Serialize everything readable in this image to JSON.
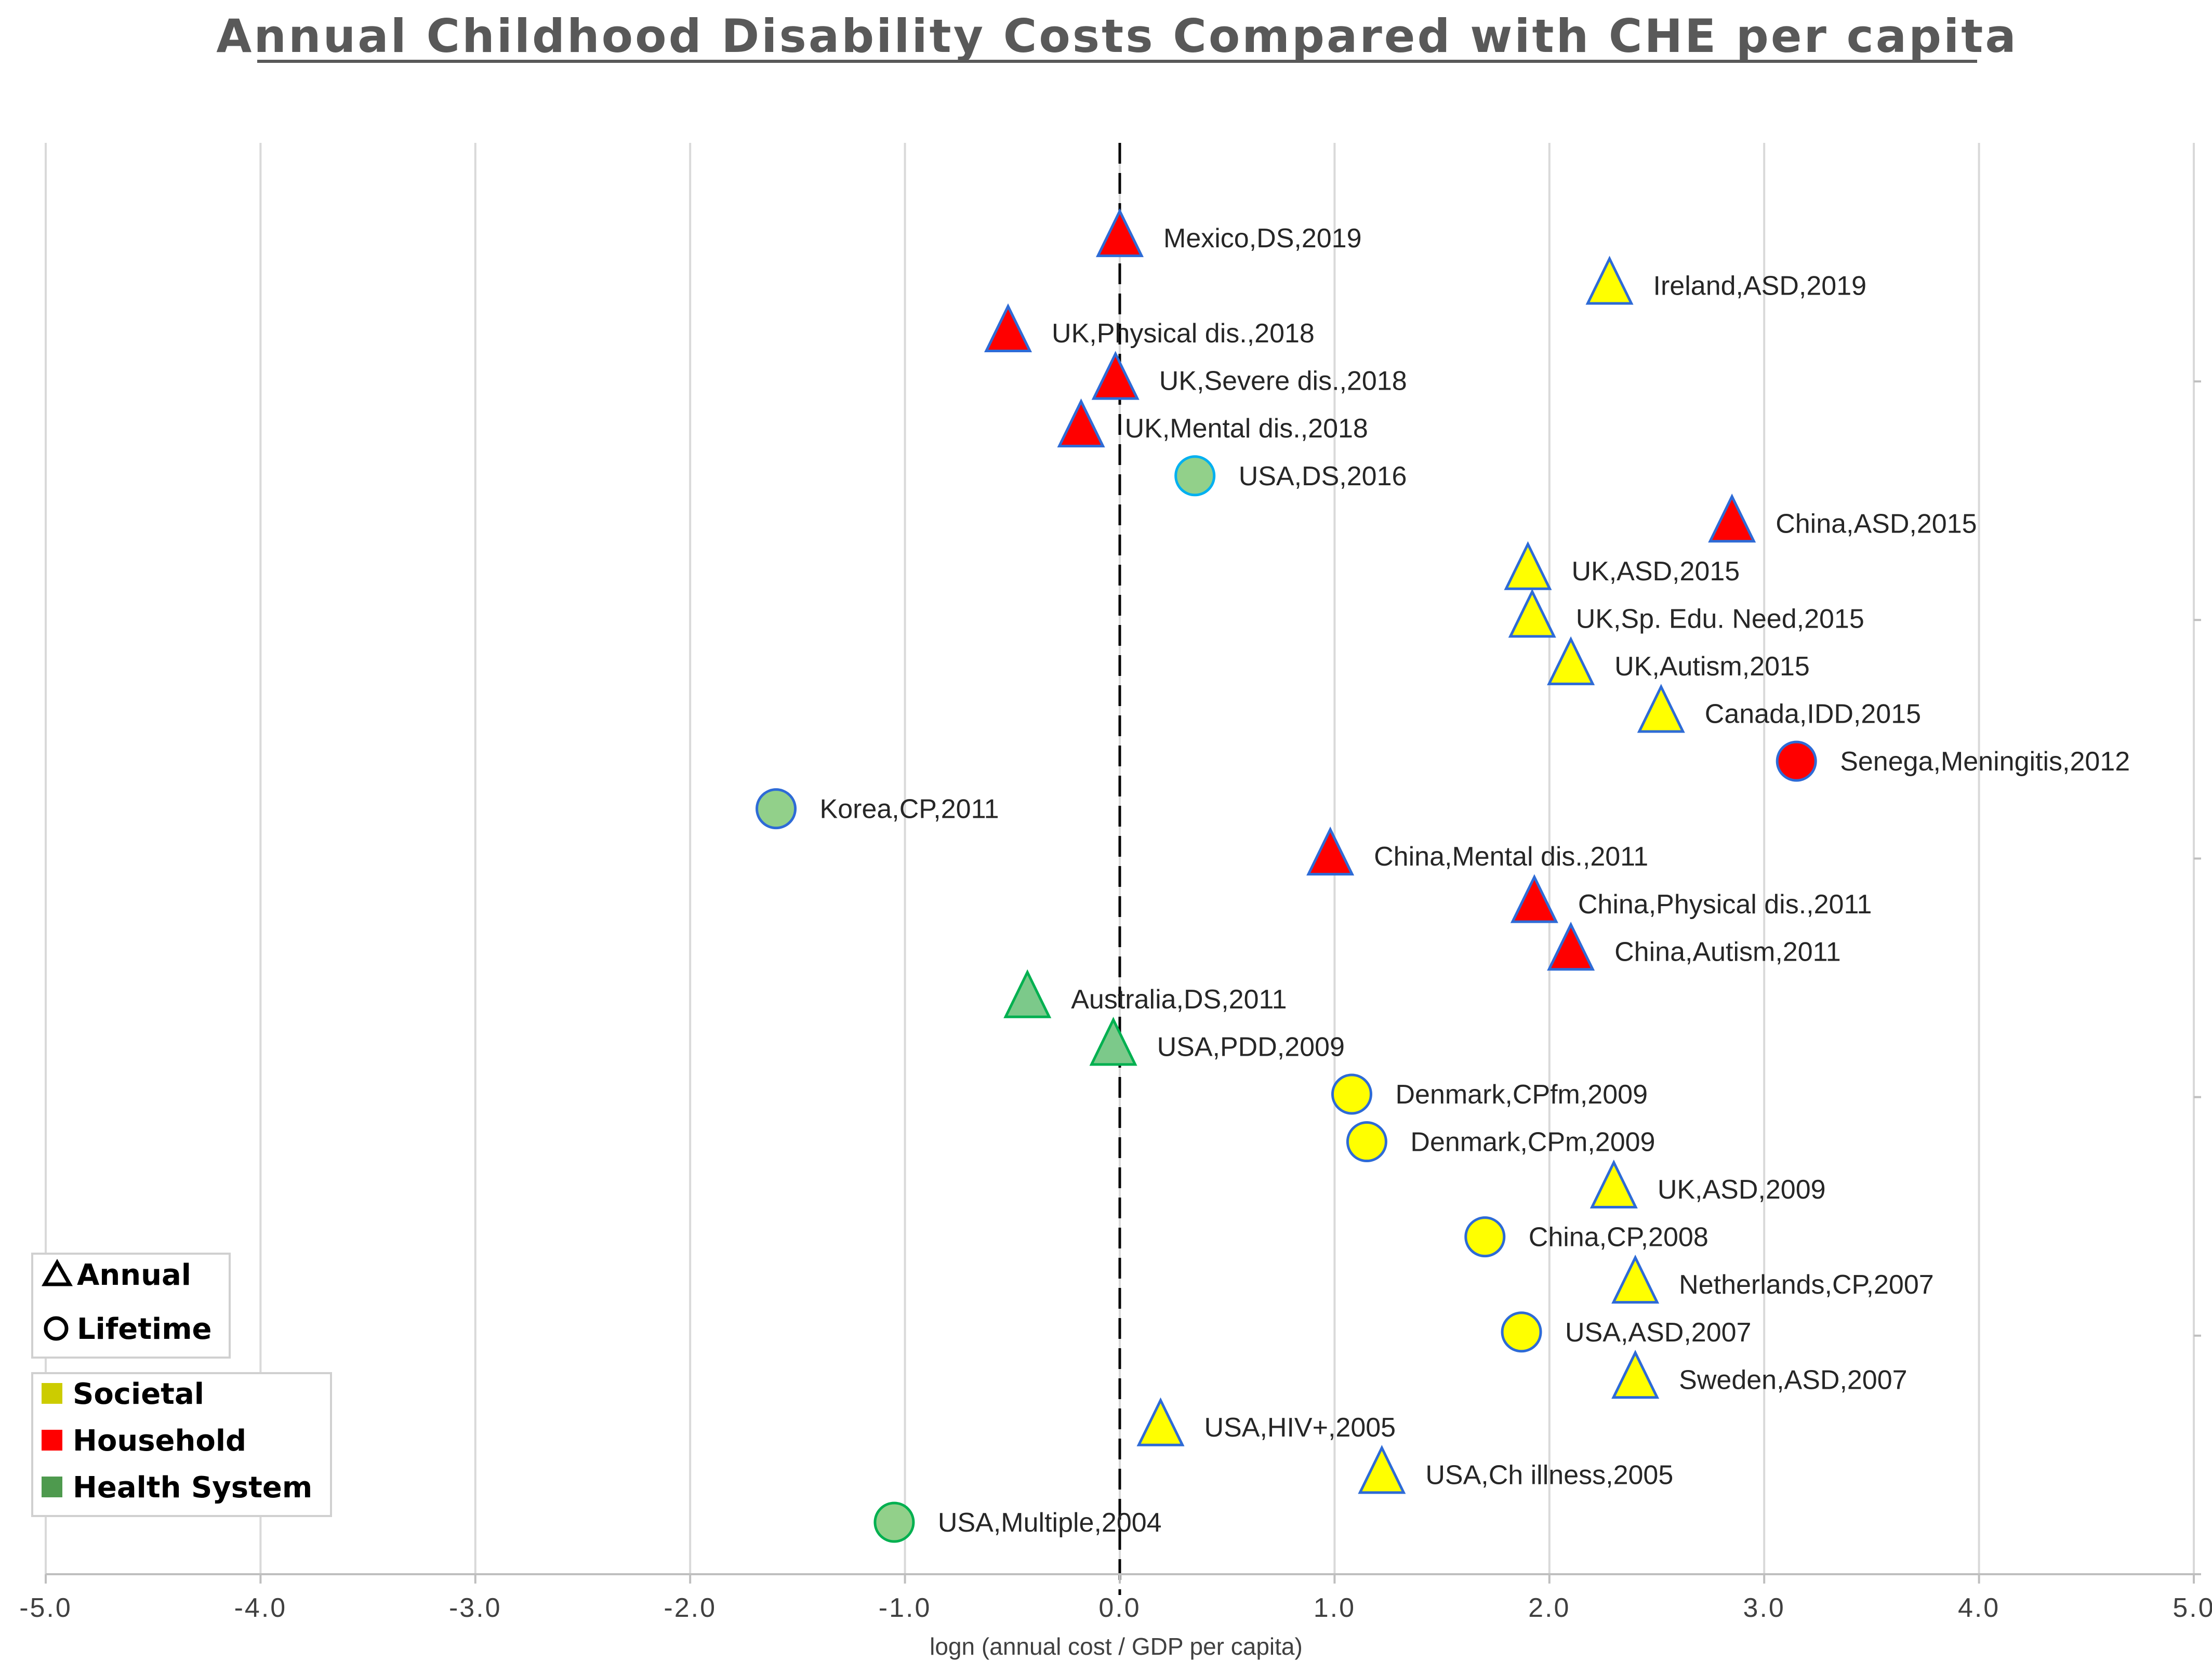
{
  "chart_data": {
    "type": "scatter",
    "title": "Annual Childhood Disability Costs Compared with CHE per capita",
    "xlabel": "logn (annual cost / GDP per capita)",
    "ylabel": "",
    "xlim": [
      -5.0,
      5.0
    ],
    "x_ticks": [
      "-5.0",
      "-4.0",
      "-3.0",
      "-2.0",
      "-1.0",
      "0.0",
      "1.0",
      "2.0",
      "3.0",
      "4.0",
      "5.0"
    ],
    "grid": "vertical",
    "reference_line": "dashed vertical line at x = 0",
    "legend": {
      "placement": "bottom-left",
      "shapes": [
        {
          "shape": "triangle",
          "label": "Annual"
        },
        {
          "shape": "circle",
          "label": "Lifetime"
        }
      ],
      "perspectives": [
        {
          "label": "Societal",
          "color": "#cccc00"
        },
        {
          "label": "Household",
          "color": "#ff0000"
        },
        {
          "label": "Health System",
          "color": "#4e9a4e"
        }
      ]
    },
    "colors": {
      "societal_fill": "#ffff00",
      "household_fill": "#ff0000",
      "health_fill": "#92d08a",
      "health_fill_triangle": "#7cc98a",
      "outline_blue": "#2e6bd6",
      "outline_green": "#00b050",
      "outline_cyan": "#00b0f0"
    },
    "points": [
      {
        "label": "Mexico,DS,2019",
        "x": 0.0,
        "shape": "triangle",
        "perspective": "Household"
      },
      {
        "label": "Ireland,ASD,2019",
        "x": 2.28,
        "shape": "triangle",
        "perspective": "Societal"
      },
      {
        "label": "UK,Physical dis.,2018",
        "x": -0.52,
        "shape": "triangle",
        "perspective": "Household"
      },
      {
        "label": "UK,Severe dis.,2018",
        "x": -0.02,
        "shape": "triangle",
        "perspective": "Household"
      },
      {
        "label": "UK,Mental dis.,2018",
        "x": -0.18,
        "shape": "triangle",
        "perspective": "Household"
      },
      {
        "label": "USA,DS,2016",
        "x": 0.35,
        "shape": "circle",
        "perspective": "Health System"
      },
      {
        "label": "China,ASD,2015",
        "x": 2.85,
        "shape": "triangle",
        "perspective": "Household"
      },
      {
        "label": "UK,ASD,2015",
        "x": 1.9,
        "shape": "triangle",
        "perspective": "Societal"
      },
      {
        "label": "UK,Sp. Edu. Need,2015",
        "x": 1.92,
        "shape": "triangle",
        "perspective": "Societal"
      },
      {
        "label": "UK,Autism,2015",
        "x": 2.1,
        "shape": "triangle",
        "perspective": "Societal"
      },
      {
        "label": "Canada,IDD,2015",
        "x": 2.52,
        "shape": "triangle",
        "perspective": "Societal"
      },
      {
        "label": "Senega,Meningitis,2012",
        "x": 3.15,
        "shape": "circle",
        "perspective": "Household"
      },
      {
        "label": "Korea,CP,2011",
        "x": -1.6,
        "shape": "circle",
        "perspective": "Health System"
      },
      {
        "label": "China,Mental dis.,2011",
        "x": 0.98,
        "shape": "triangle",
        "perspective": "Household"
      },
      {
        "label": "China,Physical dis.,2011",
        "x": 1.93,
        "shape": "triangle",
        "perspective": "Household"
      },
      {
        "label": "China,Autism,2011",
        "x": 2.1,
        "shape": "triangle",
        "perspective": "Household"
      },
      {
        "label": "Australia,DS,2011",
        "x": -0.43,
        "shape": "triangle",
        "perspective": "Health System"
      },
      {
        "label": "USA,PDD,2009",
        "x": -0.03,
        "shape": "triangle",
        "perspective": "Health System"
      },
      {
        "label": "Denmark,CPfm,2009",
        "x": 1.08,
        "shape": "circle",
        "perspective": "Societal"
      },
      {
        "label": "Denmark,CPm,2009",
        "x": 1.15,
        "shape": "circle",
        "perspective": "Societal"
      },
      {
        "label": "UK,ASD,2009",
        "x": 2.3,
        "shape": "triangle",
        "perspective": "Societal"
      },
      {
        "label": "China,CP,2008",
        "x": 1.7,
        "shape": "circle",
        "perspective": "Societal"
      },
      {
        "label": "Netherlands,CP,2007",
        "x": 2.4,
        "shape": "triangle",
        "perspective": "Societal"
      },
      {
        "label": "USA,ASD,2007",
        "x": 1.87,
        "shape": "circle",
        "perspective": "Societal"
      },
      {
        "label": "Sweden,ASD,2007",
        "x": 2.4,
        "shape": "triangle",
        "perspective": "Societal"
      },
      {
        "label": "USA,HIV+,2005",
        "x": 0.19,
        "shape": "triangle",
        "perspective": "Societal"
      },
      {
        "label": "USA,Ch illness,2005",
        "x": 1.22,
        "shape": "triangle",
        "perspective": "Societal"
      },
      {
        "label": "USA,Multiple,2004",
        "x": -1.05,
        "shape": "circle",
        "perspective": "Health System"
      }
    ]
  }
}
